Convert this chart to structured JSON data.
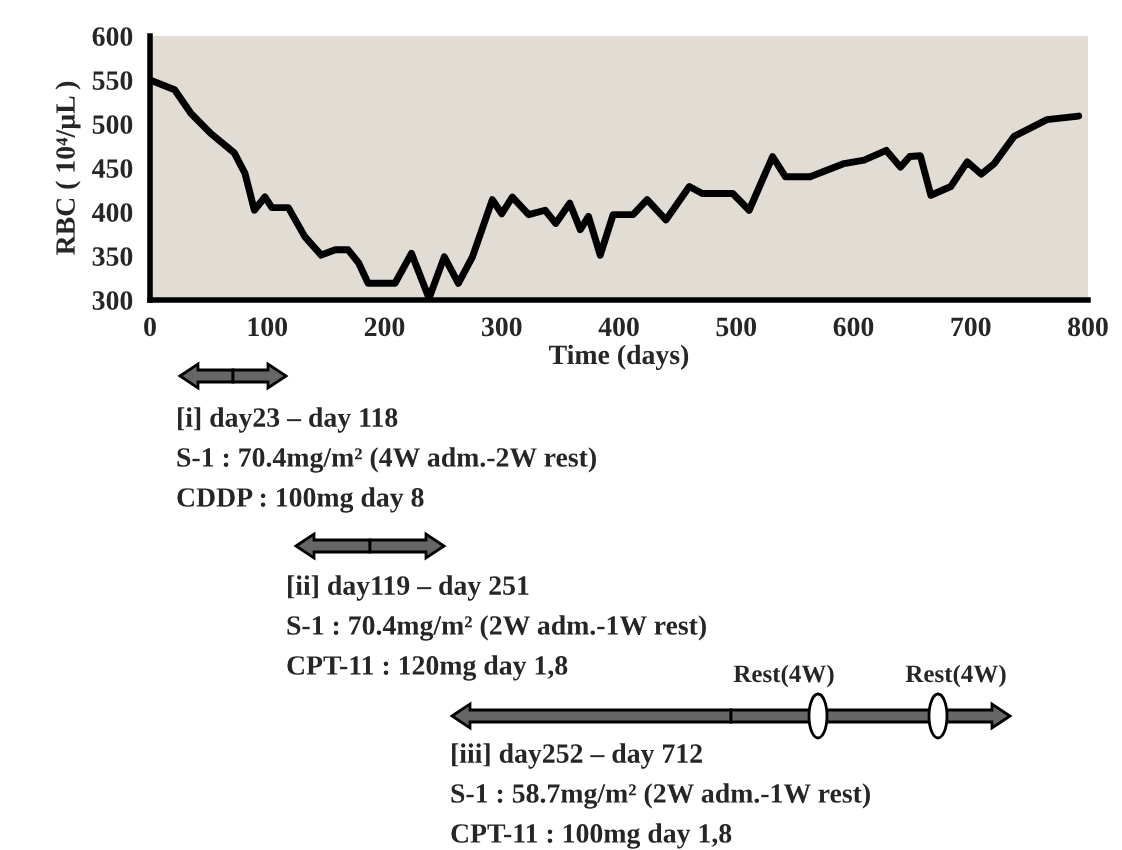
{
  "chart_data": {
    "type": "line",
    "xlabel": "Time (days)",
    "ylabel": "RBC ( 10⁴/µL )",
    "x": [
      0,
      21,
      35,
      52,
      72,
      81,
      89,
      98,
      104,
      118,
      132,
      146,
      158,
      169,
      178,
      186,
      209,
      223,
      238,
      251,
      263,
      275,
      292,
      300,
      309,
      323,
      337,
      346,
      358,
      367,
      374,
      384,
      395,
      412,
      424,
      440,
      460,
      471,
      497,
      511,
      531,
      542,
      563,
      592,
      609,
      628,
      640,
      648,
      657,
      666,
      683,
      697,
      709,
      720,
      737,
      765,
      792
    ],
    "series": [
      {
        "color": "#000000",
        "values": [
          550,
          539,
          512,
          489,
          467,
          444,
          402,
          417,
          405,
          405,
          372,
          351,
          357,
          357,
          342,
          319,
          319,
          353,
          302,
          349,
          319,
          349,
          414,
          398,
          417,
          397,
          402,
          387,
          410,
          380,
          395,
          351,
          397,
          397,
          414,
          391,
          429,
          421,
          421,
          402,
          463,
          440,
          440,
          455,
          459,
          470,
          451,
          463,
          464,
          419,
          429,
          457,
          443,
          455,
          486,
          505,
          509
        ]
      }
    ],
    "xlim": [
      0,
      800
    ],
    "xticks": [
      0,
      100,
      200,
      300,
      400,
      500,
      600,
      700,
      800
    ],
    "ylim": [
      300,
      600
    ],
    "yticks": [
      300,
      350,
      400,
      450,
      500,
      550,
      600
    ],
    "grid": false,
    "legend": false,
    "marker": "none",
    "line_style": "solid",
    "annotations": [
      "[i] day23 – day 118",
      "S-1 : 70.4mg/m² (4W adm.-2W rest)",
      "CDDP : 100mg day 8",
      "[ii] day119 – day 251",
      "S-1 : 70.4mg/m² (2W adm.-1W rest)",
      "CPT-11 : 120mg day 1,8",
      "[iii] day252 – day 712",
      "S-1 : 58.7mg/m² (2W adm.-1W rest)",
      "CPT-11 : 100mg day 1,8",
      "Rest(4W)",
      "Rest(4W)"
    ]
  }
}
